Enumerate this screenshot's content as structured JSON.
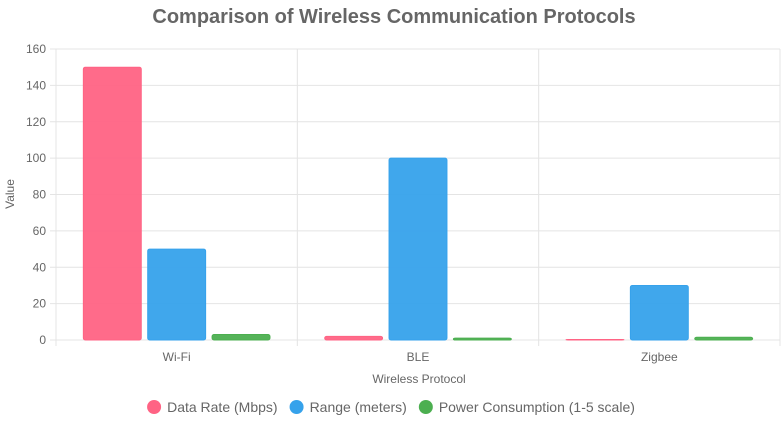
{
  "chart_data": {
    "type": "bar",
    "title": "Comparison of Wireless Communication Protocols",
    "xlabel": "Wireless Protocol",
    "ylabel": "Value",
    "categories": [
      "Wi-Fi",
      "BLE",
      "Zigbee"
    ],
    "ylim": [
      0,
      160
    ],
    "yticks": [
      0,
      20,
      40,
      60,
      80,
      100,
      120,
      140,
      160
    ],
    "grid": true,
    "legend_position": "bottom",
    "series": [
      {
        "name": "Data Rate (Mbps)",
        "values": [
          150,
          2,
          0.25
        ],
        "color": "#ff6384"
      },
      {
        "name": "Range (meters)",
        "values": [
          50,
          100,
          30
        ],
        "color": "#36a2eb"
      },
      {
        "name": "Power Consumption (1-5 scale)",
        "values": [
          3,
          1,
          1.5
        ],
        "color": "#4caf50"
      }
    ]
  }
}
